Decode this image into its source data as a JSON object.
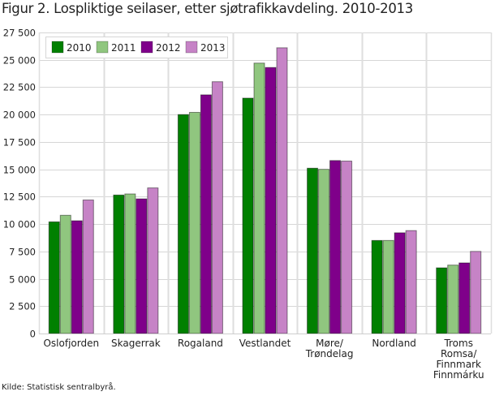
{
  "title": "Figur 2. Lospliktige seilaser, etter sjøtrafikkavdeling. 2010-2013",
  "source": "Kilde: Statistisk sentralbyrå.",
  "chart_data": {
    "type": "bar",
    "title": "Figur 2. Lospliktige seilaser, etter sjøtrafikkavdeling. 2010-2013",
    "xlabel": "",
    "ylabel": "",
    "ylim": [
      0,
      27500
    ],
    "yticks": [
      0,
      2500,
      5000,
      7500,
      10000,
      12500,
      15000,
      17500,
      20000,
      22500,
      25000,
      27500
    ],
    "ytick_labels": [
      "0",
      "2 500",
      "5 000",
      "7 500",
      "10 000",
      "12 500",
      "15 000",
      "17 500",
      "20 000",
      "22 500",
      "25 000",
      "27 500"
    ],
    "grid": true,
    "legend_position": "top-left",
    "categories": [
      [
        "Oslofjorden"
      ],
      [
        "Skagerrak"
      ],
      [
        "Rogaland"
      ],
      [
        "Vestlandet"
      ],
      [
        "Møre/",
        "Trøndelag"
      ],
      [
        "Nordland"
      ],
      [
        "Troms",
        "Romsa/",
        "Finnmark",
        "Finnmárku"
      ]
    ],
    "series": [
      {
        "name": "2010",
        "color": "#008000",
        "values": [
          10200,
          12650,
          20000,
          21500,
          15100,
          8500,
          6000
        ]
      },
      {
        "name": "2011",
        "color": "#90c67f",
        "values": [
          10800,
          12750,
          20200,
          24700,
          15000,
          8500,
          6250
        ]
      },
      {
        "name": "2012",
        "color": "#7f008a",
        "values": [
          10300,
          12300,
          21800,
          24300,
          15800,
          9200,
          6450
        ]
      },
      {
        "name": "2013",
        "color": "#c683c6",
        "values": [
          12200,
          13300,
          23000,
          26100,
          15750,
          9400,
          7500
        ]
      }
    ]
  }
}
